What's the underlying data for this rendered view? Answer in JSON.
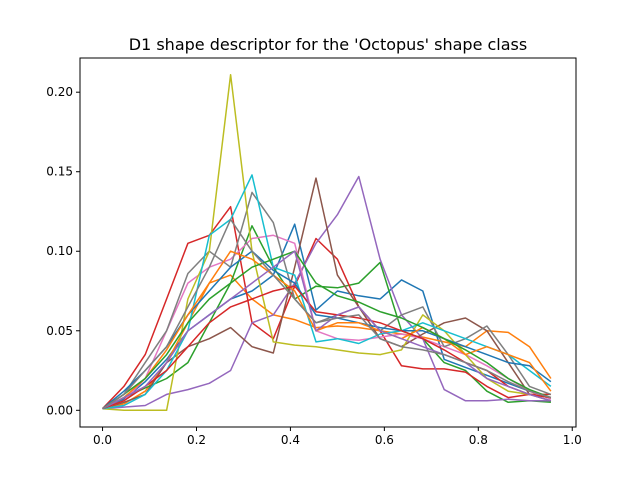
{
  "chart_data": {
    "type": "line",
    "title": "D1 shape descriptor for the 'Octopus' shape class",
    "xlabel": "",
    "ylabel": "",
    "xlim": [
      -0.048,
      1.008
    ],
    "ylim": [
      -0.0105,
      0.2215
    ],
    "xticks": [
      0.0,
      0.2,
      0.4,
      0.6,
      0.8,
      1.0
    ],
    "xtick_labels": [
      "0.0",
      "0.2",
      "0.4",
      "0.6",
      "0.8",
      "1.0"
    ],
    "yticks": [
      0.0,
      0.05,
      0.1,
      0.15,
      0.2
    ],
    "ytick_labels": [
      "0.00",
      "0.05",
      "0.10",
      "0.15",
      "0.20"
    ],
    "grid": false,
    "legend": "none",
    "x": [
      0.0,
      0.0455,
      0.0909,
      0.1364,
      0.1818,
      0.2273,
      0.2727,
      0.3182,
      0.3636,
      0.4091,
      0.4545,
      0.5,
      0.5455,
      0.5909,
      0.6364,
      0.6818,
      0.7273,
      0.7727,
      0.8182,
      0.8636,
      0.9091,
      0.9545
    ],
    "series": [
      {
        "color": "#1f77b4",
        "values": [
          0.001,
          0.007,
          0.018,
          0.032,
          0.05,
          0.06,
          0.07,
          0.075,
          0.085,
          0.117,
          0.063,
          0.075,
          0.072,
          0.07,
          0.082,
          0.075,
          0.032,
          0.027,
          0.022,
          0.017,
          0.012,
          0.008
        ]
      },
      {
        "color": "#ff7f0e",
        "values": [
          0.001,
          0.004,
          0.012,
          0.03,
          0.055,
          0.08,
          0.085,
          0.07,
          0.06,
          0.057,
          0.052,
          0.053,
          0.052,
          0.05,
          0.048,
          0.046,
          0.043,
          0.04,
          0.05,
          0.049,
          0.04,
          0.02
        ]
      },
      {
        "color": "#2ca02c",
        "values": [
          0.001,
          0.008,
          0.014,
          0.02,
          0.03,
          0.055,
          0.08,
          0.116,
          0.09,
          0.07,
          0.078,
          0.077,
          0.08,
          0.093,
          0.05,
          0.045,
          0.03,
          0.025,
          0.012,
          0.005,
          0.006,
          0.005
        ]
      },
      {
        "color": "#d62728",
        "values": [
          0.001,
          0.015,
          0.035,
          0.07,
          0.105,
          0.11,
          0.128,
          0.055,
          0.045,
          0.078,
          0.108,
          0.095,
          0.065,
          0.05,
          0.028,
          0.026,
          0.026,
          0.024,
          0.015,
          0.008,
          0.01,
          0.01
        ]
      },
      {
        "color": "#9467bd",
        "values": [
          0.001,
          0.002,
          0.003,
          0.01,
          0.013,
          0.017,
          0.025,
          0.055,
          0.06,
          0.08,
          0.105,
          0.123,
          0.147,
          0.095,
          0.06,
          0.045,
          0.013,
          0.006,
          0.006,
          0.007,
          0.006,
          0.006
        ]
      },
      {
        "color": "#8c564b",
        "values": [
          0.001,
          0.005,
          0.01,
          0.03,
          0.04,
          0.045,
          0.052,
          0.04,
          0.036,
          0.09,
          0.146,
          0.085,
          0.065,
          0.045,
          0.04,
          0.048,
          0.055,
          0.058,
          0.05,
          0.03,
          0.01,
          0.006
        ]
      },
      {
        "color": "#e377c2",
        "values": [
          0.001,
          0.006,
          0.02,
          0.05,
          0.08,
          0.09,
          0.095,
          0.108,
          0.11,
          0.105,
          0.05,
          0.045,
          0.044,
          0.046,
          0.048,
          0.045,
          0.04,
          0.035,
          0.028,
          0.02,
          0.012,
          0.007
        ]
      },
      {
        "color": "#7f7f7f",
        "values": [
          0.001,
          0.01,
          0.03,
          0.05,
          0.086,
          0.1,
          0.09,
          0.137,
          0.118,
          0.07,
          0.055,
          0.06,
          0.065,
          0.05,
          0.06,
          0.065,
          0.04,
          0.045,
          0.053,
          0.035,
          0.015,
          0.01
        ]
      },
      {
        "color": "#bcbd22",
        "values": [
          0.001,
          0.0,
          0.0,
          0.0,
          0.07,
          0.1,
          0.211,
          0.1,
          0.043,
          0.041,
          0.04,
          0.038,
          0.036,
          0.035,
          0.038,
          0.06,
          0.05,
          0.035,
          0.02,
          0.012,
          0.01,
          0.008
        ]
      },
      {
        "color": "#17becf",
        "values": [
          0.001,
          0.003,
          0.01,
          0.025,
          0.05,
          0.11,
          0.12,
          0.148,
          0.09,
          0.085,
          0.043,
          0.045,
          0.042,
          0.048,
          0.05,
          0.055,
          0.05,
          0.045,
          0.04,
          0.035,
          0.025,
          0.015
        ]
      },
      {
        "color": "#1f77b4",
        "values": [
          0.001,
          0.012,
          0.025,
          0.04,
          0.06,
          0.075,
          0.09,
          0.1,
          0.088,
          0.08,
          0.06,
          0.058,
          0.055,
          0.052,
          0.05,
          0.05,
          0.045,
          0.04,
          0.035,
          0.03,
          0.028,
          0.018
        ]
      },
      {
        "color": "#ff7f0e",
        "values": [
          0.001,
          0.008,
          0.02,
          0.038,
          0.06,
          0.08,
          0.1,
          0.095,
          0.085,
          0.075,
          0.05,
          0.055,
          0.055,
          0.05,
          0.045,
          0.052,
          0.045,
          0.035,
          0.04,
          0.035,
          0.03,
          0.012
        ]
      },
      {
        "color": "#2ca02c",
        "values": [
          0.001,
          0.01,
          0.02,
          0.035,
          0.055,
          0.07,
          0.08,
          0.09,
          0.095,
          0.1,
          0.08,
          0.072,
          0.068,
          0.062,
          0.058,
          0.052,
          0.045,
          0.038,
          0.03,
          0.02,
          0.013,
          0.008
        ]
      },
      {
        "color": "#d62728",
        "values": [
          0.001,
          0.006,
          0.015,
          0.025,
          0.04,
          0.055,
          0.065,
          0.07,
          0.075,
          0.078,
          0.062,
          0.06,
          0.058,
          0.055,
          0.05,
          0.045,
          0.038,
          0.03,
          0.025,
          0.015,
          0.01,
          0.008
        ]
      },
      {
        "color": "#9467bd",
        "values": [
          0.001,
          0.008,
          0.015,
          0.03,
          0.05,
          0.06,
          0.07,
          0.08,
          0.09,
          0.1,
          0.05,
          0.06,
          0.065,
          0.05,
          0.045,
          0.04,
          0.035,
          0.03,
          0.02,
          0.015,
          0.01,
          0.006
        ]
      },
      {
        "color": "#7f7f7f",
        "values": [
          0.001,
          0.01,
          0.025,
          0.04,
          0.065,
          0.09,
          0.12,
          0.1,
          0.085,
          0.07,
          0.055,
          0.058,
          0.06,
          0.045,
          0.04,
          0.038,
          0.035,
          0.03,
          0.025,
          0.018,
          0.012,
          0.008
        ]
      }
    ]
  }
}
